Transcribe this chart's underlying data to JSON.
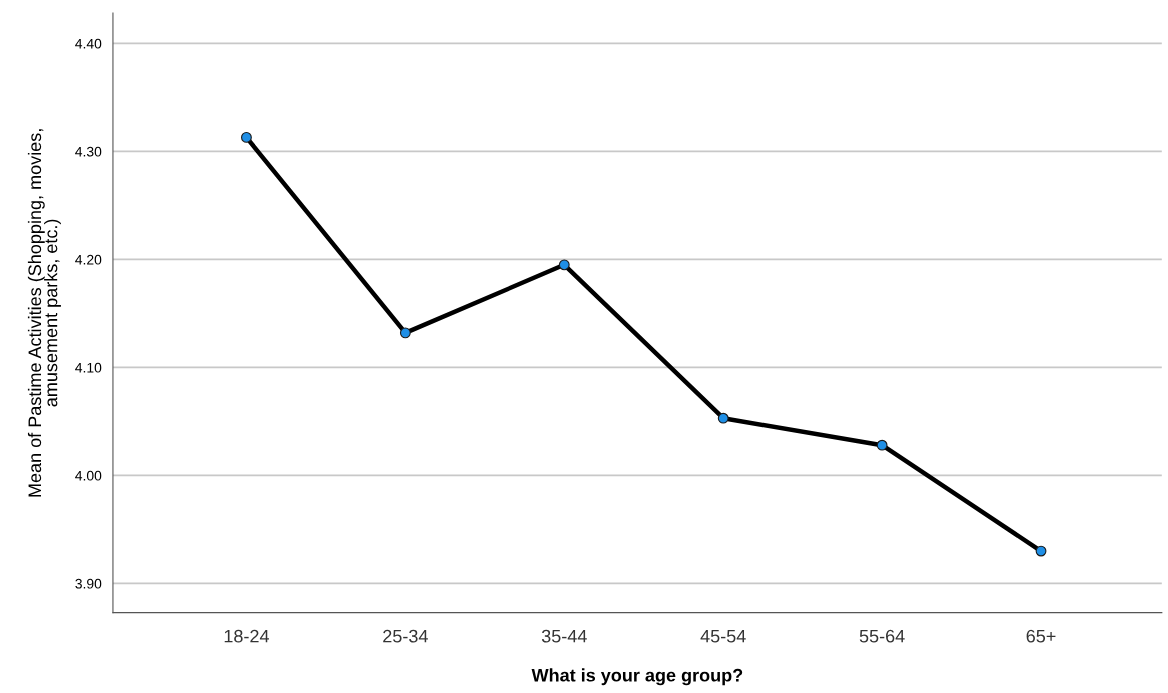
{
  "chart_data": {
    "type": "line",
    "xlabel": "What is your age group?",
    "ylabel": "Mean of Pastime Activities (Shopping, movies,\namusement parks, etc.)",
    "categories": [
      "18-24",
      "25-34",
      "35-44",
      "45-54",
      "55-64",
      "65+"
    ],
    "series": [
      {
        "color": "#000000",
        "values": [
          4.313,
          4.132,
          4.195,
          4.053,
          4.028,
          3.93
        ]
      }
    ],
    "marker": "circle",
    "ylim": [
      3.873,
      4.428
    ],
    "yticks": [
      {
        "value": 3.9,
        "label": "3.90"
      },
      {
        "value": 4.0,
        "label": "4.00"
      },
      {
        "value": 4.1,
        "label": "4.10"
      },
      {
        "value": 4.2,
        "label": "4.20"
      },
      {
        "value": 4.3,
        "label": "4.30"
      },
      {
        "value": 4.4,
        "label": "4.40"
      }
    ],
    "grid": "y",
    "legend": false
  }
}
